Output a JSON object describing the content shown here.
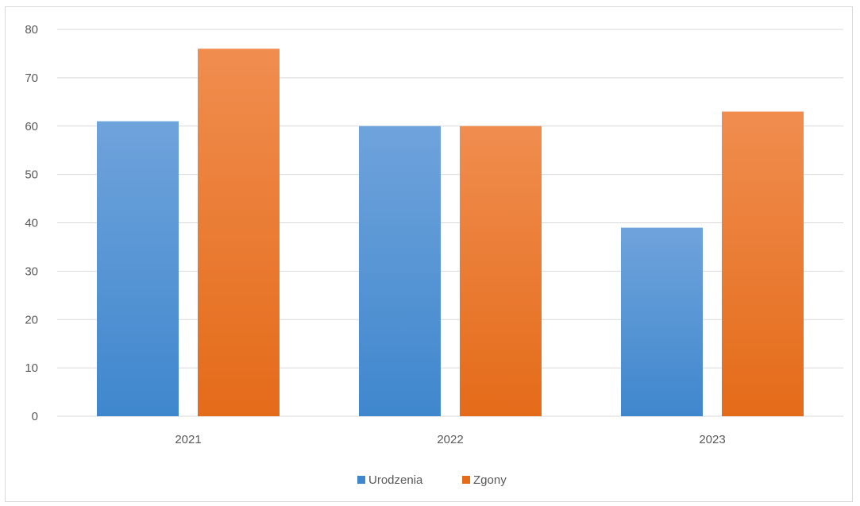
{
  "chart_data": {
    "type": "bar",
    "categories": [
      "2021",
      "2022",
      "2023"
    ],
    "series": [
      {
        "name": "Urodzenia",
        "values": [
          61,
          60,
          39
        ]
      },
      {
        "name": "Zgony",
        "values": [
          76,
          60,
          63
        ]
      }
    ],
    "ylim": [
      0,
      80
    ],
    "yticks": [
      0,
      10,
      20,
      30,
      40,
      50,
      60,
      70,
      80
    ],
    "ytick_labels": [
      "0",
      "10",
      "20",
      "30",
      "40",
      "50",
      "60",
      "70",
      "80"
    ],
    "grid": true,
    "legend_position": "bottom",
    "colors": {
      "Urodzenia": [
        "#6fa3dc",
        "#3f87cd"
      ],
      "Zgony": [
        "#f08d4f",
        "#e46b19"
      ]
    }
  }
}
